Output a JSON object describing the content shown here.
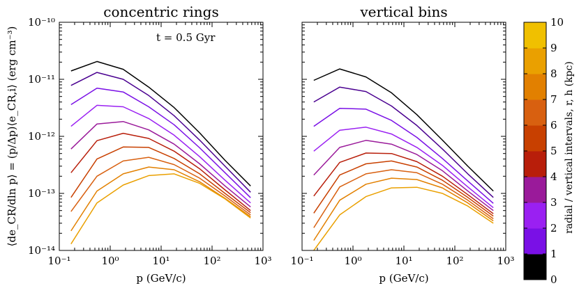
{
  "chart_data": [
    {
      "type": "line",
      "title": "concentric rings",
      "xlabel": "p (GeV/c)",
      "ylabel": "⟨de_CR/dln p⟩ = (p/Δp)⟨e_CR,i⟩  (erg cm⁻³)",
      "xscale": "log",
      "yscale": "log",
      "xlim": [
        0.1,
        1000
      ],
      "ylim": [
        1e-14,
        1e-10
      ],
      "xticklabels": [
        "10⁻¹",
        "10⁰",
        "10¹",
        "10²",
        "10³"
      ],
      "yticklabels": [
        "10⁻¹⁴",
        "10⁻¹³",
        "10⁻¹²",
        "10⁻¹¹",
        "10⁻¹⁰"
      ],
      "annotation": "t = 0.5 Gyr",
      "x": [
        0.17,
        0.55,
        1.8,
        5.7,
        18,
        57,
        180,
        570
      ],
      "series": [
        {
          "name": "0",
          "values": [
            1.4e-11,
            2.05e-11,
            1.5e-11,
            7.3e-12,
            3.2e-12,
            1.15e-12,
            3.8e-13,
            1.35e-13
          ]
        },
        {
          "name": "1",
          "values": [
            7.8e-12,
            1.32e-11,
            1e-11,
            5.2e-12,
            2.3e-12,
            8.6e-13,
            3e-13,
            1.05e-13
          ]
        },
        {
          "name": "2",
          "values": [
            3.6e-12,
            7e-12,
            6e-12,
            3.3e-12,
            1.6e-12,
            6.3e-13,
            2.3e-13,
            8.4e-14
          ]
        },
        {
          "name": "3",
          "values": [
            1.5e-12,
            3.5e-12,
            3.3e-12,
            2.05e-12,
            1.05e-12,
            4.4e-13,
            1.7e-13,
            6.8e-14
          ]
        },
        {
          "name": "4",
          "values": [
            6e-13,
            1.65e-12,
            1.82e-12,
            1.3e-12,
            7.3e-13,
            3.3e-13,
            1.35e-13,
            5.8e-14
          ]
        },
        {
          "name": "5",
          "values": [
            2.3e-13,
            8.4e-13,
            1.13e-12,
            9.2e-13,
            5.5e-13,
            2.7e-13,
            1.15e-13,
            5e-14
          ]
        },
        {
          "name": "6",
          "values": [
            8.5e-14,
            4e-13,
            6.5e-13,
            6.4e-13,
            4.1e-13,
            2.2e-13,
            1e-13,
            4.6e-14
          ]
        },
        {
          "name": "7",
          "values": [
            4.8e-14,
            2e-13,
            3.7e-13,
            4.3e-13,
            3.2e-13,
            1.85e-13,
            9e-14,
            4.2e-14
          ]
        },
        {
          "name": "8",
          "values": [
            2.2e-14,
            1.1e-13,
            2.2e-13,
            2.9e-13,
            2.6e-13,
            1.6e-13,
            8.2e-14,
            3.9e-14
          ]
        },
        {
          "name": "9",
          "values": [
            1.3e-14,
            6.8e-14,
            1.4e-13,
            2.05e-13,
            2.2e-13,
            1.5e-13,
            8e-14,
            3.7e-14
          ]
        }
      ]
    },
    {
      "type": "line",
      "title": "vertical bins",
      "xlabel": "p (GeV/c)",
      "xscale": "log",
      "yscale": "log",
      "xlim": [
        0.1,
        1000
      ],
      "ylim": [
        1e-14,
        1e-10
      ],
      "xticklabels": [
        "10⁻¹",
        "10⁰",
        "10¹",
        "10²",
        "10³"
      ],
      "x": [
        0.17,
        0.55,
        1.8,
        5.7,
        18,
        57,
        180,
        570
      ],
      "series": [
        {
          "name": "0",
          "values": [
            9.6e-12,
            1.52e-11,
            1.1e-11,
            5.8e-12,
            2.4e-12,
            8.6e-13,
            3e-13,
            1.1e-13
          ]
        },
        {
          "name": "1",
          "values": [
            4e-12,
            7.3e-12,
            6.1e-12,
            3.4e-12,
            1.55e-12,
            6e-13,
            2.2e-13,
            8.5e-14
          ]
        },
        {
          "name": "2",
          "values": [
            1.5e-12,
            3.1e-12,
            3e-12,
            1.9e-12,
            9.6e-13,
            4.1e-13,
            1.65e-13,
            6.7e-14
          ]
        },
        {
          "name": "3",
          "values": [
            5.5e-13,
            1.28e-12,
            1.45e-12,
            1.1e-12,
            6.4e-13,
            3.1e-13,
            1.3e-13,
            5.6e-14
          ]
        },
        {
          "name": "4",
          "values": [
            2.1e-13,
            6.4e-13,
            8.5e-13,
            7.3e-13,
            4.8e-13,
            2.5e-13,
            1.1e-13,
            5e-14
          ]
        },
        {
          "name": "5",
          "values": [
            9e-14,
            3.5e-13,
            5.1e-13,
            5e-13,
            3.6e-13,
            2e-13,
            9.5e-14,
            4.4e-14
          ]
        },
        {
          "name": "6",
          "values": [
            4.5e-14,
            2.1e-13,
            3.3e-13,
            3.7e-13,
            2.9e-13,
            1.7e-13,
            8.5e-14,
            4e-14
          ]
        },
        {
          "name": "7",
          "values": [
            2.5e-14,
            1.3e-13,
            2.2e-13,
            2.6e-13,
            2.3e-13,
            1.45e-13,
            7.6e-14,
            3.6e-14
          ]
        },
        {
          "name": "8",
          "values": [
            1.5e-14,
            7.6e-14,
            1.45e-13,
            1.85e-13,
            1.75e-13,
            1.25e-13,
            6.8e-14,
            3.3e-14
          ]
        },
        {
          "name": "9",
          "values": [
            1e-14,
            4.2e-14,
            8.8e-14,
            1.25e-13,
            1.28e-13,
            1e-13,
            6e-14,
            3e-14
          ]
        }
      ]
    }
  ],
  "colorbar": {
    "label": "radial / vertical intervals, r, h (kpc)",
    "ticks": [
      "0",
      "1",
      "2",
      "3",
      "4",
      "5",
      "6",
      "7",
      "8",
      "9",
      "10"
    ],
    "colors": [
      "#000000",
      "#4a0090",
      "#7a10e6",
      "#9a20f2",
      "#9a1a9a",
      "#b81e0a",
      "#c84000",
      "#d86010",
      "#e28000",
      "#eaa000",
      "#f0c000"
    ]
  }
}
